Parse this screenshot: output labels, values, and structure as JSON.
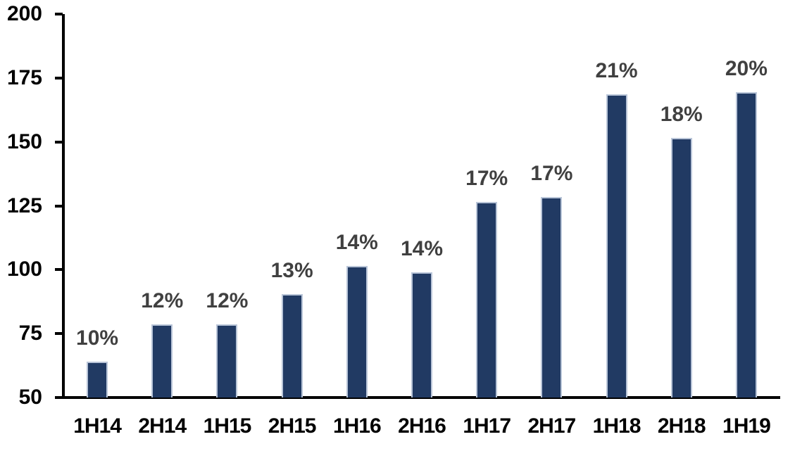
{
  "chart_data": {
    "type": "bar",
    "title": "",
    "xlabel": "",
    "ylabel": "",
    "categories": [
      "1H14",
      "2H14",
      "1H15",
      "2H15",
      "1H16",
      "2H16",
      "1H17",
      "2H17",
      "1H18",
      "2H18",
      "1H19"
    ],
    "values": [
      64,
      78.5,
      78.5,
      90.5,
      101.5,
      99,
      126.5,
      128.5,
      168.5,
      151.5,
      169.5
    ],
    "bar_labels": [
      "10%",
      "12%",
      "12%",
      "13%",
      "14%",
      "14%",
      "17%",
      "17%",
      "21%",
      "18%",
      "20%"
    ],
    "ylim": [
      50,
      200
    ],
    "yticks": [
      50,
      75,
      100,
      125,
      150,
      175,
      200
    ],
    "grid": false,
    "legend_position": "none",
    "colors": {
      "bar_fill": "#213a63",
      "bar_border": "#b9c5d8",
      "bar_label_text": "#404040",
      "axis_text": "#000000",
      "axis_line": "#000000",
      "background": "#ffffff"
    }
  }
}
